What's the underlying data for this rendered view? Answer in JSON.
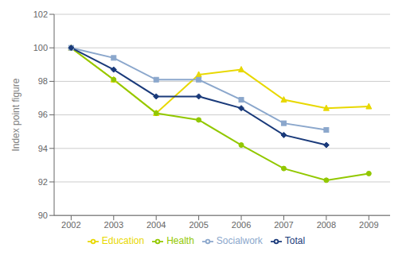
{
  "chart_data": {
    "type": "line",
    "x": [
      2002,
      2003,
      2004,
      2005,
      2006,
      2007,
      2008,
      2009
    ],
    "series": [
      {
        "name": "Education",
        "color": "#e8d800",
        "marker": "triangle",
        "values": [
          100.0,
          98.1,
          96.1,
          98.4,
          98.7,
          96.9,
          96.4,
          96.5
        ]
      },
      {
        "name": "Health",
        "color": "#92c800",
        "marker": "circle",
        "values": [
          100.0,
          98.1,
          96.1,
          95.7,
          94.2,
          92.8,
          92.1,
          92.5
        ]
      },
      {
        "name": "Socialwork",
        "color": "#8ba7cc",
        "marker": "square",
        "values": [
          100.0,
          99.4,
          98.1,
          98.1,
          96.9,
          95.5,
          95.1,
          null
        ]
      },
      {
        "name": "Total",
        "color": "#1a3a7a",
        "marker": "diamond",
        "values": [
          100.0,
          98.7,
          97.1,
          97.1,
          96.4,
          94.8,
          94.2,
          null
        ]
      }
    ],
    "xlim": [
      2001.6,
      2009.5
    ],
    "xticks": [
      2002,
      2003,
      2004,
      2005,
      2006,
      2007,
      2008,
      2009
    ],
    "ylim": [
      90,
      102
    ],
    "yticks": [
      90,
      92,
      94,
      96,
      98,
      100,
      102
    ],
    "ylabel": "Index point figure",
    "grid": true,
    "legend": "bottom"
  }
}
